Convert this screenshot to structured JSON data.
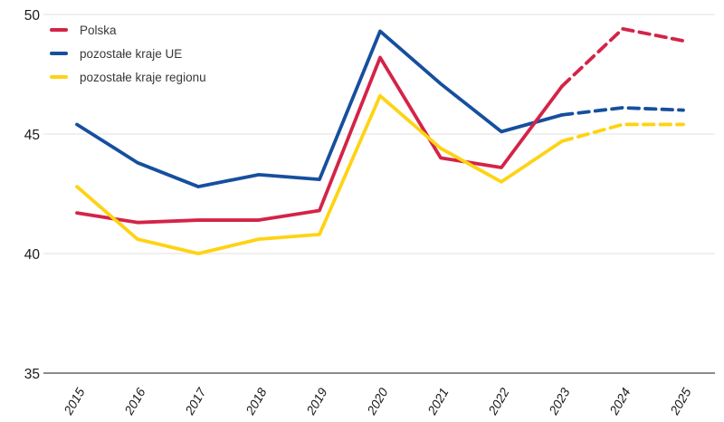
{
  "figure": {
    "background_color": "#ffffff",
    "tick_label_color": "#1a1a1a",
    "axis_color": "#8c8c8c",
    "gridline_color": "#e6e6e6",
    "legend_text_color": "#383838"
  },
  "chart_data": {
    "type": "line",
    "title": "",
    "xlabel": "",
    "ylabel": "",
    "x_labels": [
      "2015",
      "2016",
      "2017",
      "2018",
      "2019",
      "2020",
      "2021",
      "2022",
      "2023",
      "2024",
      "2025"
    ],
    "series": [
      {
        "name": "Polska",
        "color": "#d42347",
        "z": 1,
        "solid_until_index": 8,
        "values": [
          41.7,
          41.3,
          41.4,
          41.4,
          41.8,
          48.2,
          44.0,
          43.6,
          47.0,
          49.4,
          48.9
        ]
      },
      {
        "name": "pozostałe kraje UE",
        "color": "#164f9e",
        "z": 0,
        "solid_until_index": 8,
        "values": [
          45.4,
          43.8,
          42.8,
          43.3,
          43.1,
          49.3,
          47.1,
          45.1,
          45.8,
          46.1,
          46.0
        ]
      },
      {
        "name": "pozostałe kraje regionu",
        "color": "#fed314",
        "z": 2,
        "solid_until_index": 8,
        "values": [
          42.8,
          40.6,
          40.0,
          40.6,
          40.8,
          46.6,
          44.4,
          43.0,
          44.7,
          45.4,
          45.4
        ]
      }
    ],
    "ylim": [
      35,
      50
    ],
    "yticks": [
      35,
      40,
      45,
      50
    ],
    "grid": "horizontal-light",
    "legend_position": "top-left",
    "dashed_segment_meaning": "values after 2023 drawn dashed"
  }
}
